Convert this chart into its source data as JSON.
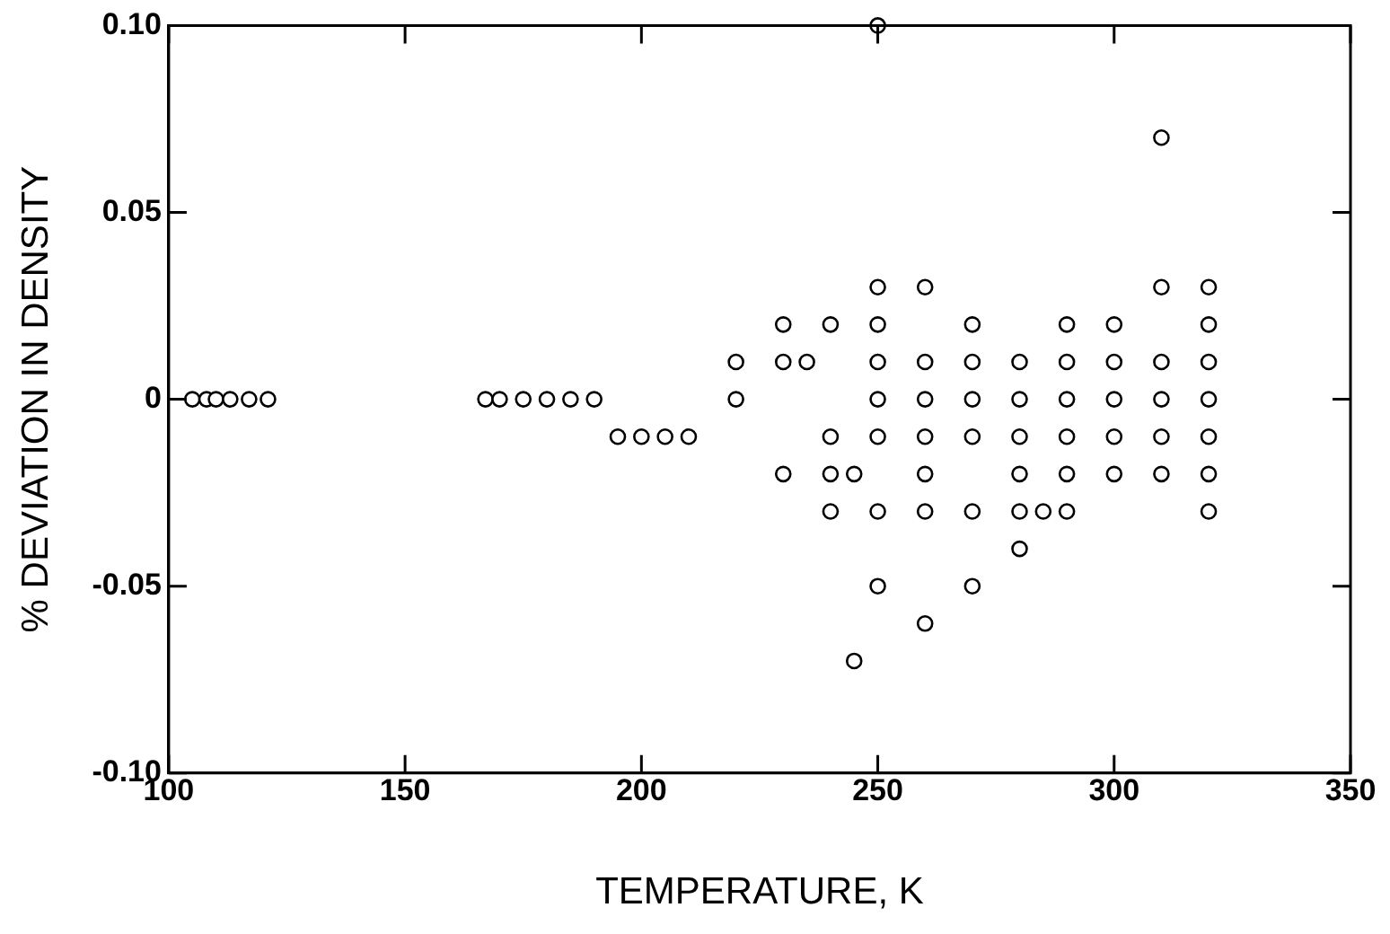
{
  "chart_data": {
    "type": "scatter",
    "xlabel": "TEMPERATURE, K",
    "ylabel": "% DEVIATION IN DENSITY",
    "xlim": [
      100,
      350
    ],
    "xticks": [
      100,
      150,
      200,
      250,
      300,
      350
    ],
    "ylim": [
      -0.1,
      0.1
    ],
    "yticks": [
      {
        "value": -0.1,
        "label": "-0.10"
      },
      {
        "value": -0.05,
        "label": "-0.05"
      },
      {
        "value": 0,
        "label": "0"
      },
      {
        "value": 0.05,
        "label": "0.05"
      },
      {
        "value": 0.1,
        "label": "0.10"
      }
    ],
    "grid": false,
    "legend": false,
    "marker": "circle",
    "series": [
      {
        "color": "#000000",
        "x": [
          105,
          108,
          110,
          113,
          117,
          121,
          167,
          170,
          175,
          180,
          185,
          190,
          195,
          200,
          205,
          210,
          220,
          220,
          230,
          230,
          230,
          235,
          240,
          240,
          240,
          240,
          245,
          245,
          250,
          250,
          250,
          250,
          250,
          250,
          250,
          250,
          260,
          260,
          260,
          260,
          260,
          260,
          260,
          270,
          270,
          270,
          270,
          270,
          270,
          280,
          280,
          280,
          280,
          280,
          280,
          285,
          290,
          290,
          290,
          290,
          290,
          290,
          300,
          300,
          300,
          300,
          300,
          310,
          310,
          310,
          310,
          310,
          310,
          320,
          320,
          320,
          320,
          320,
          320,
          320
        ],
        "values": [
          0,
          0,
          0,
          0,
          0,
          0,
          0,
          0,
          0,
          0,
          0,
          0,
          -0.01,
          -0.01,
          -0.01,
          -0.01,
          0.01,
          0,
          0.02,
          0.01,
          -0.02,
          0.01,
          0.02,
          -0.01,
          -0.02,
          -0.03,
          -0.02,
          -0.07,
          0.1,
          0.03,
          0.02,
          0.01,
          0,
          -0.01,
          -0.03,
          -0.05,
          0.03,
          0.01,
          0,
          -0.01,
          -0.02,
          -0.03,
          -0.06,
          0.02,
          0.01,
          0,
          -0.01,
          -0.03,
          -0.05,
          0.01,
          0,
          -0.01,
          -0.02,
          -0.03,
          -0.04,
          -0.03,
          0.02,
          0.01,
          0,
          -0.01,
          -0.02,
          -0.03,
          0.02,
          0.01,
          0,
          -0.01,
          -0.02,
          0.07,
          0.03,
          0.01,
          0,
          -0.01,
          -0.02,
          0.03,
          0.02,
          0.01,
          0,
          -0.01,
          -0.02,
          -0.03
        ]
      }
    ]
  }
}
